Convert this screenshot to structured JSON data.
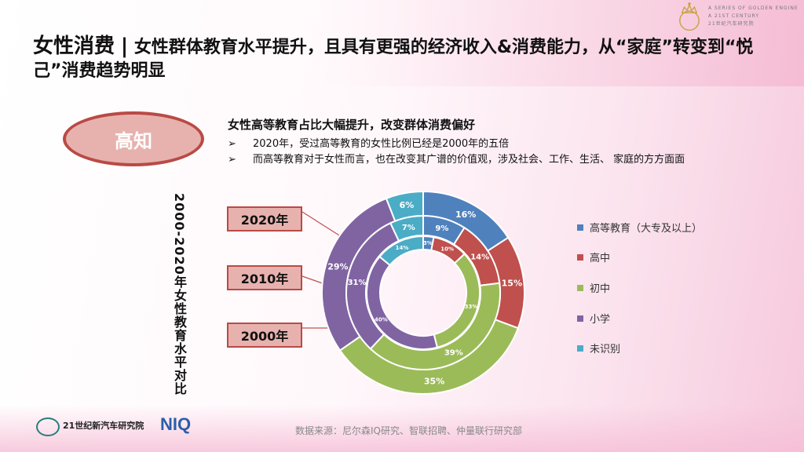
{
  "header": {
    "title_main": "女性消费",
    "title_sep": "|",
    "title_rest": "女性群体教育水平提升，且具有更强的经济收入&消费能力，从“家庭”转变到“悦己”消费趋势明显",
    "logo_text": [
      "A SERIES OF GOLDEN ENGINE",
      "A 21ST CENTURY",
      "21世纪汽车研究院"
    ]
  },
  "section": {
    "badge": "高知",
    "subhead": "女性高等教育占比大幅提升，改变群体消费偏好",
    "bullet_marker": "➢",
    "bullets": [
      "2020年，受过高等教育的女性比例已经是2000年的五倍",
      "而高等教育对于女性而言，也在改变其广谱的价值观，涉及社会、工作、生活、 家庭的方方面面"
    ]
  },
  "chart_data": {
    "type": "pie",
    "subtype": "nested-donut",
    "title": "2000-2020年女性教育水平对比",
    "categories": [
      "高等教育（大专及以上）",
      "高中",
      "初中",
      "小学",
      "未识别"
    ],
    "colors": [
      "#4f81bd",
      "#c0504d",
      "#9bbb59",
      "#8064a2",
      "#4bacc6"
    ],
    "series": [
      {
        "name": "2020年",
        "values": [
          16,
          15,
          35,
          29,
          6
        ]
      },
      {
        "name": "2010年",
        "values": [
          9,
          14,
          39,
          31,
          7
        ]
      },
      {
        "name": "2000年",
        "values": [
          3,
          10,
          33,
          40,
          14
        ]
      }
    ],
    "legend": "right"
  },
  "footer": {
    "source": "数据来源：尼尔森IQ研究、智联招聘、仲量联行研究部",
    "brand1": "21世纪新汽车研究院",
    "brand2": "NIQ"
  }
}
